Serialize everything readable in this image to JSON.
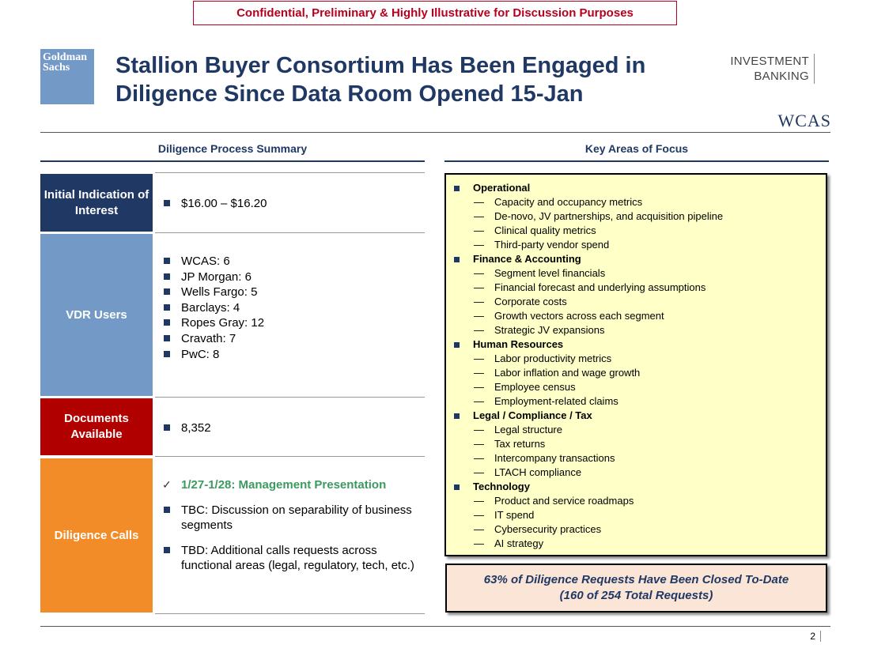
{
  "header": {
    "confidential": "Confidential, Preliminary & Highly Illustrative for Discussion Purposes",
    "gs_logo_line1": "Goldman",
    "gs_logo_line2": "Sachs",
    "title": "Stallion Buyer Consortium Has Been Engaged in Diligence Since Data Room Opened 15-Jan",
    "ib_logo_line1": "INVESTMENT",
    "ib_logo_line2": "BANKING",
    "wcas_logo": "WCAS"
  },
  "left": {
    "heading": "Diligence Process Summary",
    "rows": {
      "ioi": {
        "label": "Initial Indication of Interest",
        "color": "#1f3864",
        "items": [
          "$16.00 – $16.20"
        ]
      },
      "vdr": {
        "label": "VDR Users",
        "color": "#7399c6",
        "items": [
          "WCAS: 6",
          "JP Morgan: 6",
          "Wells Fargo: 5",
          "Barclays: 4",
          "Ropes Gray: 12",
          "Cravath: 7",
          "PwC: 8"
        ]
      },
      "docs": {
        "label": "Documents Available",
        "color": "#b00000",
        "items": [
          "8,352"
        ]
      },
      "calls": {
        "label": "Diligence Calls",
        "color": "#f28c28",
        "check_mark": "✓",
        "checked_item": "1/27-1/28: Management Presentation",
        "items": [
          "TBC: Discussion on separability of business segments",
          "TBD: Additional calls requests across functional areas (legal, regulatory, tech, etc.)"
        ]
      }
    }
  },
  "right": {
    "heading": "Key Areas of Focus",
    "dash": "—",
    "categories": [
      {
        "name": "Operational",
        "items": [
          "Capacity and occupancy metrics",
          "De-novo, JV partnerships, and acquisition pipeline",
          "Clinical quality metrics",
          "Third-party vendor spend"
        ]
      },
      {
        "name": "Finance & Accounting",
        "items": [
          "Segment level financials",
          "Financial forecast and underlying assumptions",
          "Corporate costs",
          "Growth vectors across each segment",
          "Strategic JV expansions"
        ]
      },
      {
        "name": "Human Resources",
        "items": [
          "Labor productivity metrics",
          "Labor inflation and wage growth",
          "Employee census",
          "Employment-related claims"
        ]
      },
      {
        "name": "Legal / Compliance / Tax",
        "items": [
          "Legal structure",
          "Tax returns",
          "Intercompany transactions",
          "LTACH compliance"
        ]
      },
      {
        "name": "Technology",
        "items": [
          "Product and service roadmaps",
          "IT spend",
          "Cybersecurity practices",
          "AI strategy"
        ]
      }
    ],
    "summary_line1": "63% of Diligence Requests Have Been Closed To-Date",
    "summary_line2": "(160 of 254 Total Requests)"
  },
  "footer": {
    "page_number": "2"
  }
}
